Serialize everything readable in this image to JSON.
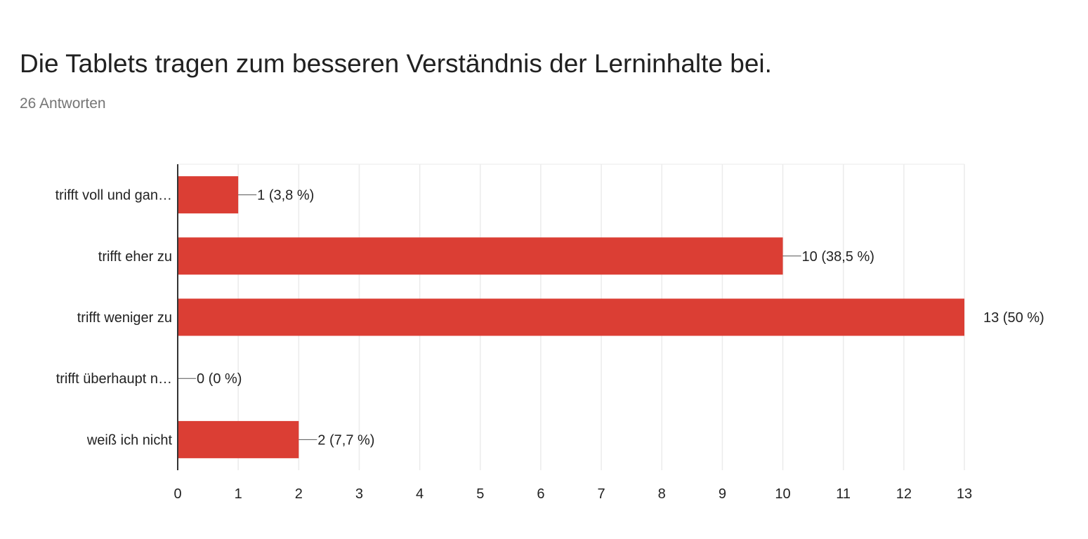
{
  "title": "Die Tablets tragen zum besseren Verständnis der Lerninhalte bei.",
  "subtitle": "26 Antworten",
  "colors": {
    "bar": "#db3e34",
    "grid": "#ebebeb",
    "axis": "#333333",
    "text": "#222222"
  },
  "chart_data": {
    "type": "bar",
    "orientation": "horizontal",
    "title": "Die Tablets tragen zum besseren Verständnis der Lerninhalte bei.",
    "categories": [
      "trifft voll und gan…",
      "trifft eher zu",
      "trifft weniger zu",
      "trifft überhaupt n…",
      "weiß ich nicht"
    ],
    "values": [
      1,
      10,
      13,
      0,
      2
    ],
    "data_labels": [
      "1 (3,8 %)",
      "10 (38,5 %)",
      "13 (50 %)",
      "0 (0 %)",
      "2 (7,7 %)"
    ],
    "xlim": [
      0,
      13
    ],
    "xticks": [
      "0",
      "1",
      "2",
      "3",
      "4",
      "5",
      "6",
      "7",
      "8",
      "9",
      "10",
      "11",
      "12",
      "13"
    ],
    "grid": true,
    "legend": "none"
  }
}
